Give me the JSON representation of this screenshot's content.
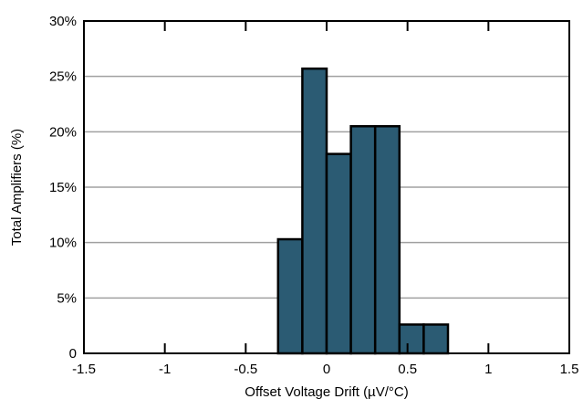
{
  "chart_data": {
    "type": "bar",
    "title": "",
    "xlabel": "Offset Voltage Drift (µV/°C)",
    "ylabel": "Total Amplifiers (%)",
    "xlim": [
      -1.5,
      1.5
    ],
    "ylim": [
      0,
      30
    ],
    "x_ticks": [
      "-1.5",
      "-1",
      "-0.5",
      "0",
      "0.5",
      "1",
      "1.5"
    ],
    "x_tick_values": [
      -1.5,
      -1,
      -0.5,
      0,
      0.5,
      1,
      1.5
    ],
    "y_ticks": [
      "0",
      "5%",
      "10%",
      "15%",
      "20%",
      "25%",
      "30%"
    ],
    "y_tick_values": [
      0,
      5,
      10,
      15,
      20,
      25,
      30
    ],
    "grid": "horizontal",
    "bar_color": "#2b5b73",
    "bins": [
      {
        "start": -0.3,
        "end": -0.15,
        "value": 10.3
      },
      {
        "start": -0.15,
        "end": 0.0,
        "value": 25.7
      },
      {
        "start": 0.0,
        "end": 0.15,
        "value": 18.0
      },
      {
        "start": 0.15,
        "end": 0.3,
        "value": 20.5
      },
      {
        "start": 0.3,
        "end": 0.45,
        "value": 20.5
      },
      {
        "start": 0.45,
        "end": 0.6,
        "value": 2.6
      },
      {
        "start": 0.6,
        "end": 0.75,
        "value": 2.6
      }
    ]
  }
}
